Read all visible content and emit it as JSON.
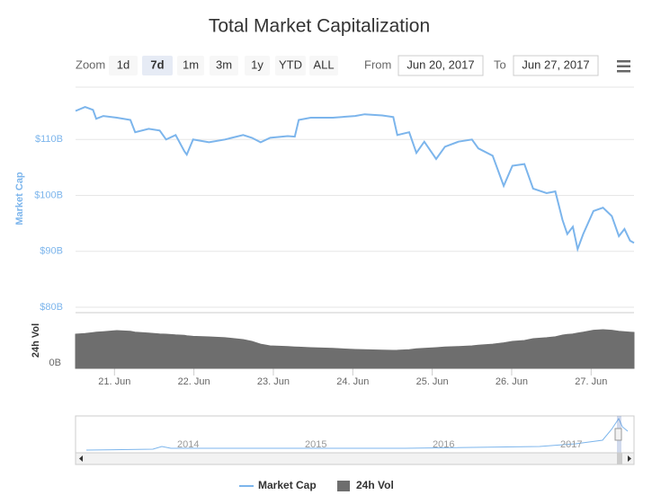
{
  "chart_data": {
    "type": "line",
    "title": "Total Market Capitalization",
    "range_selector": {
      "label": "Zoom",
      "buttons": [
        "1d",
        "7d",
        "1m",
        "3m",
        "1y",
        "YTD",
        "ALL"
      ],
      "selected": 1,
      "from_label": "From",
      "from": "Jun 20, 2017",
      "to_label": "To",
      "to": "Jun 27, 2017"
    },
    "y_label": "Market Cap",
    "y2_label": "24h Vol",
    "xlim": [
      20.51,
      27.54
    ],
    "xticks": [
      {
        "value": 21,
        "label": "21. Jun"
      },
      {
        "value": 22,
        "label": "22. Jun"
      },
      {
        "value": 23,
        "label": "23. Jun"
      },
      {
        "value": 24,
        "label": "24. Jun"
      },
      {
        "value": 25,
        "label": "25. Jun"
      },
      {
        "value": 26,
        "label": "26. Jun"
      },
      {
        "value": 27,
        "label": "27. Jun"
      }
    ],
    "ylim": [
      80,
      120
    ],
    "yticks": [
      {
        "value": 80,
        "label": "$80B"
      },
      {
        "value": 90,
        "label": "$90B"
      },
      {
        "value": 100,
        "label": "$100B"
      },
      {
        "value": 110,
        "label": "$110B"
      }
    ],
    "y2lim": [
      0,
      6
    ],
    "y2ticks": [
      {
        "value": 0,
        "label": "0B"
      }
    ],
    "grid": true,
    "legend": "bottom",
    "navigator_labels": [
      "2014",
      "2015",
      "2016",
      "2017"
    ],
    "x": [
      20.51,
      20.63,
      20.73,
      20.77,
      20.86,
      21.03,
      21.2,
      21.26,
      21.43,
      21.57,
      21.65,
      21.77,
      21.88,
      21.91,
      21.99,
      22.19,
      22.39,
      22.62,
      22.73,
      22.84,
      22.96,
      23.18,
      23.27,
      23.32,
      23.47,
      23.75,
      24.03,
      24.15,
      24.37,
      24.51,
      24.56,
      24.71,
      24.8,
      24.9,
      25.05,
      25.16,
      25.33,
      25.5,
      25.58,
      25.76,
      25.9,
      26.01,
      26.16,
      26.27,
      26.44,
      26.55,
      26.64,
      26.7,
      26.77,
      26.83,
      26.9,
      27.03,
      27.15,
      27.26,
      27.35,
      27.42,
      27.49,
      27.54
    ],
    "series": [
      {
        "name": "Market Cap",
        "color": "#7cb5ec",
        "type": "line",
        "values": [
          115.1,
          115.8,
          115.3,
          113.7,
          114.2,
          113.9,
          113.5,
          111.3,
          111.9,
          111.6,
          110.0,
          110.8,
          107.9,
          107.3,
          110.0,
          109.5,
          110.0,
          110.8,
          110.3,
          109.5,
          110.3,
          110.6,
          110.5,
          113.5,
          113.9,
          113.9,
          114.2,
          114.5,
          114.3,
          114.0,
          110.8,
          111.3,
          107.6,
          109.6,
          106.5,
          108.7,
          109.6,
          110.0,
          108.4,
          107.1,
          101.7,
          105.3,
          105.6,
          101.2,
          100.4,
          100.7,
          95.6,
          93.1,
          94.4,
          90.4,
          93.1,
          97.2,
          97.8,
          96.3,
          92.7,
          94.0,
          91.9,
          91.5
        ]
      },
      {
        "name": "24h Vol",
        "color": "#6e6e6e",
        "type": "area",
        "axis": "y2",
        "values": [
          3.68,
          3.75,
          3.85,
          3.9,
          3.95,
          4.06,
          4.0,
          3.9,
          3.8,
          3.7,
          3.68,
          3.6,
          3.55,
          3.5,
          3.45,
          3.39,
          3.3,
          3.1,
          2.9,
          2.6,
          2.42,
          2.35,
          2.3,
          2.28,
          2.23,
          2.15,
          2.03,
          2.0,
          1.96,
          1.94,
          1.95,
          2.0,
          2.1,
          2.15,
          2.23,
          2.3,
          2.35,
          2.42,
          2.5,
          2.6,
          2.75,
          2.9,
          3.0,
          3.19,
          3.3,
          3.4,
          3.58,
          3.65,
          3.7,
          3.8,
          3.9,
          4.1,
          4.16,
          4.1,
          4.0,
          3.95,
          3.9,
          3.87
        ]
      }
    ]
  }
}
